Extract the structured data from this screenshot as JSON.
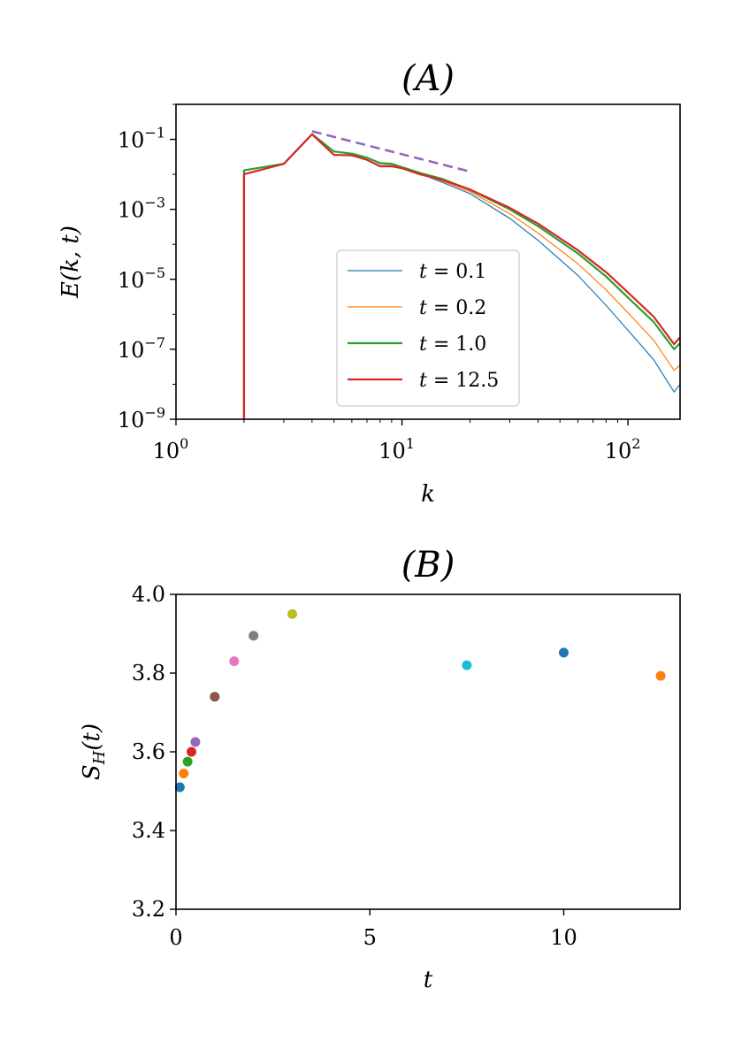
{
  "chart_data": [
    {
      "type": "line",
      "title": "(A)",
      "xlabel": "k",
      "ylabel": "E(k, t)",
      "xscale": "log",
      "yscale": "log",
      "xlim": [
        1,
        170
      ],
      "ylim": [
        1e-09,
        1
      ],
      "x_ticks": [
        {
          "value": 1,
          "base": "10",
          "exp": "0"
        },
        {
          "value": 10,
          "base": "10",
          "exp": "1"
        },
        {
          "value": 100,
          "base": "10",
          "exp": "2"
        }
      ],
      "y_ticks": [
        {
          "value": 1e-09,
          "base": "10",
          "exp": "−9"
        },
        {
          "value": 1e-07,
          "base": "10",
          "exp": "−7"
        },
        {
          "value": 1e-05,
          "base": "10",
          "exp": "−5"
        },
        {
          "value": 0.001,
          "base": "10",
          "exp": "−3"
        },
        {
          "value": 0.1,
          "base": "10",
          "exp": "−1"
        }
      ],
      "legend_position": "center-right",
      "series": [
        {
          "name": "t = 0.1",
          "label_var": "t",
          "label_val": "= 0.1",
          "color": "#1f77b4",
          "width": 1.2,
          "x": [
            2,
            2,
            3,
            4,
            5,
            6,
            7,
            8,
            9,
            10,
            12,
            15,
            20,
            30,
            40,
            60,
            80,
            100,
            130,
            160,
            170
          ],
          "y": [
            1e-09,
            0.013,
            0.02,
            0.14,
            0.045,
            0.038,
            0.03,
            0.02,
            0.019,
            0.016,
            0.0105,
            0.006,
            0.0028,
            0.00055,
            0.00013,
            1.3e-05,
            1.8e-06,
            3.5e-07,
            5e-08,
            6e-09,
            1e-08
          ]
        },
        {
          "name": "t = 0.2",
          "label_var": "t",
          "label_val": "= 0.2",
          "color": "#ff7f0e",
          "width": 1.2,
          "x": [
            2,
            2,
            3,
            4,
            5,
            6,
            7,
            8,
            9,
            10,
            12,
            15,
            20,
            30,
            40,
            60,
            80,
            100,
            130,
            160,
            170
          ],
          "y": [
            1e-09,
            0.013,
            0.02,
            0.14,
            0.045,
            0.038,
            0.03,
            0.02,
            0.019,
            0.016,
            0.0105,
            0.0065,
            0.0032,
            0.00075,
            0.00021,
            2.8e-05,
            5e-06,
            1.1e-06,
            1.8e-07,
            2.5e-08,
            3.5e-08
          ]
        },
        {
          "name": "t = 1.0",
          "label_var": "t",
          "label_val": "= 1.0",
          "color": "#2ca02c",
          "width": 2.2,
          "x": [
            2,
            2,
            3,
            4,
            5,
            6,
            7,
            8,
            9,
            10,
            12,
            15,
            20,
            30,
            40,
            60,
            80,
            100,
            130,
            160,
            170
          ],
          "y": [
            1e-09,
            0.013,
            0.02,
            0.14,
            0.045,
            0.039,
            0.03,
            0.021,
            0.02,
            0.016,
            0.011,
            0.0075,
            0.0036,
            0.001,
            0.00033,
            5.5e-05,
            1.2e-05,
            3e-06,
            6e-07,
            1e-07,
            1.5e-07
          ]
        },
        {
          "name": "t = 12.5",
          "label_var": "t",
          "label_val": "= 12.5",
          "color": "#d62728",
          "width": 2.2,
          "x": [
            2,
            2,
            3,
            4,
            5,
            6,
            7,
            8,
            9,
            10,
            12,
            15,
            20,
            30,
            40,
            60,
            80,
            100,
            130,
            160,
            170
          ],
          "y": [
            1e-09,
            0.01,
            0.02,
            0.14,
            0.036,
            0.035,
            0.026,
            0.017,
            0.017,
            0.015,
            0.01,
            0.007,
            0.0037,
            0.0011,
            0.00039,
            6.8e-05,
            1.6e-05,
            4.2e-06,
            8.5e-07,
            1.4e-07,
            2.2e-07
          ]
        }
      ],
      "reference_line": {
        "color": "#9467bd",
        "style": "dashed",
        "x": [
          4,
          20
        ],
        "y": [
          0.17,
          0.012
        ]
      }
    },
    {
      "type": "scatter",
      "title": "(B)",
      "xlabel": "t",
      "ylabel": "S_H(t)",
      "ylabel_main": "S",
      "ylabel_sub": "H",
      "ylabel_tail": "(t)",
      "xlim": [
        0,
        13
      ],
      "ylim": [
        3.2,
        4.0
      ],
      "x_ticks": [
        0,
        5,
        10
      ],
      "y_ticks": [
        "3.2",
        "3.4",
        "3.6",
        "3.8",
        "4.0"
      ],
      "points": [
        {
          "x": 0.1,
          "y": 3.51,
          "color": "#1f77b4"
        },
        {
          "x": 0.2,
          "y": 3.545,
          "color": "#ff7f0e"
        },
        {
          "x": 0.3,
          "y": 3.575,
          "color": "#2ca02c"
        },
        {
          "x": 0.4,
          "y": 3.6,
          "color": "#d62728"
        },
        {
          "x": 0.5,
          "y": 3.625,
          "color": "#9467bd"
        },
        {
          "x": 1.0,
          "y": 3.74,
          "color": "#8c564b"
        },
        {
          "x": 1.5,
          "y": 3.83,
          "color": "#e377c2"
        },
        {
          "x": 2.0,
          "y": 3.895,
          "color": "#7f7f7f"
        },
        {
          "x": 3.0,
          "y": 3.95,
          "color": "#bcbd22"
        },
        {
          "x": 7.5,
          "y": 3.82,
          "color": "#17becf"
        },
        {
          "x": 10.0,
          "y": 3.852,
          "color": "#1f77b4"
        },
        {
          "x": 12.5,
          "y": 3.793,
          "color": "#ff7f0e"
        }
      ]
    }
  ]
}
